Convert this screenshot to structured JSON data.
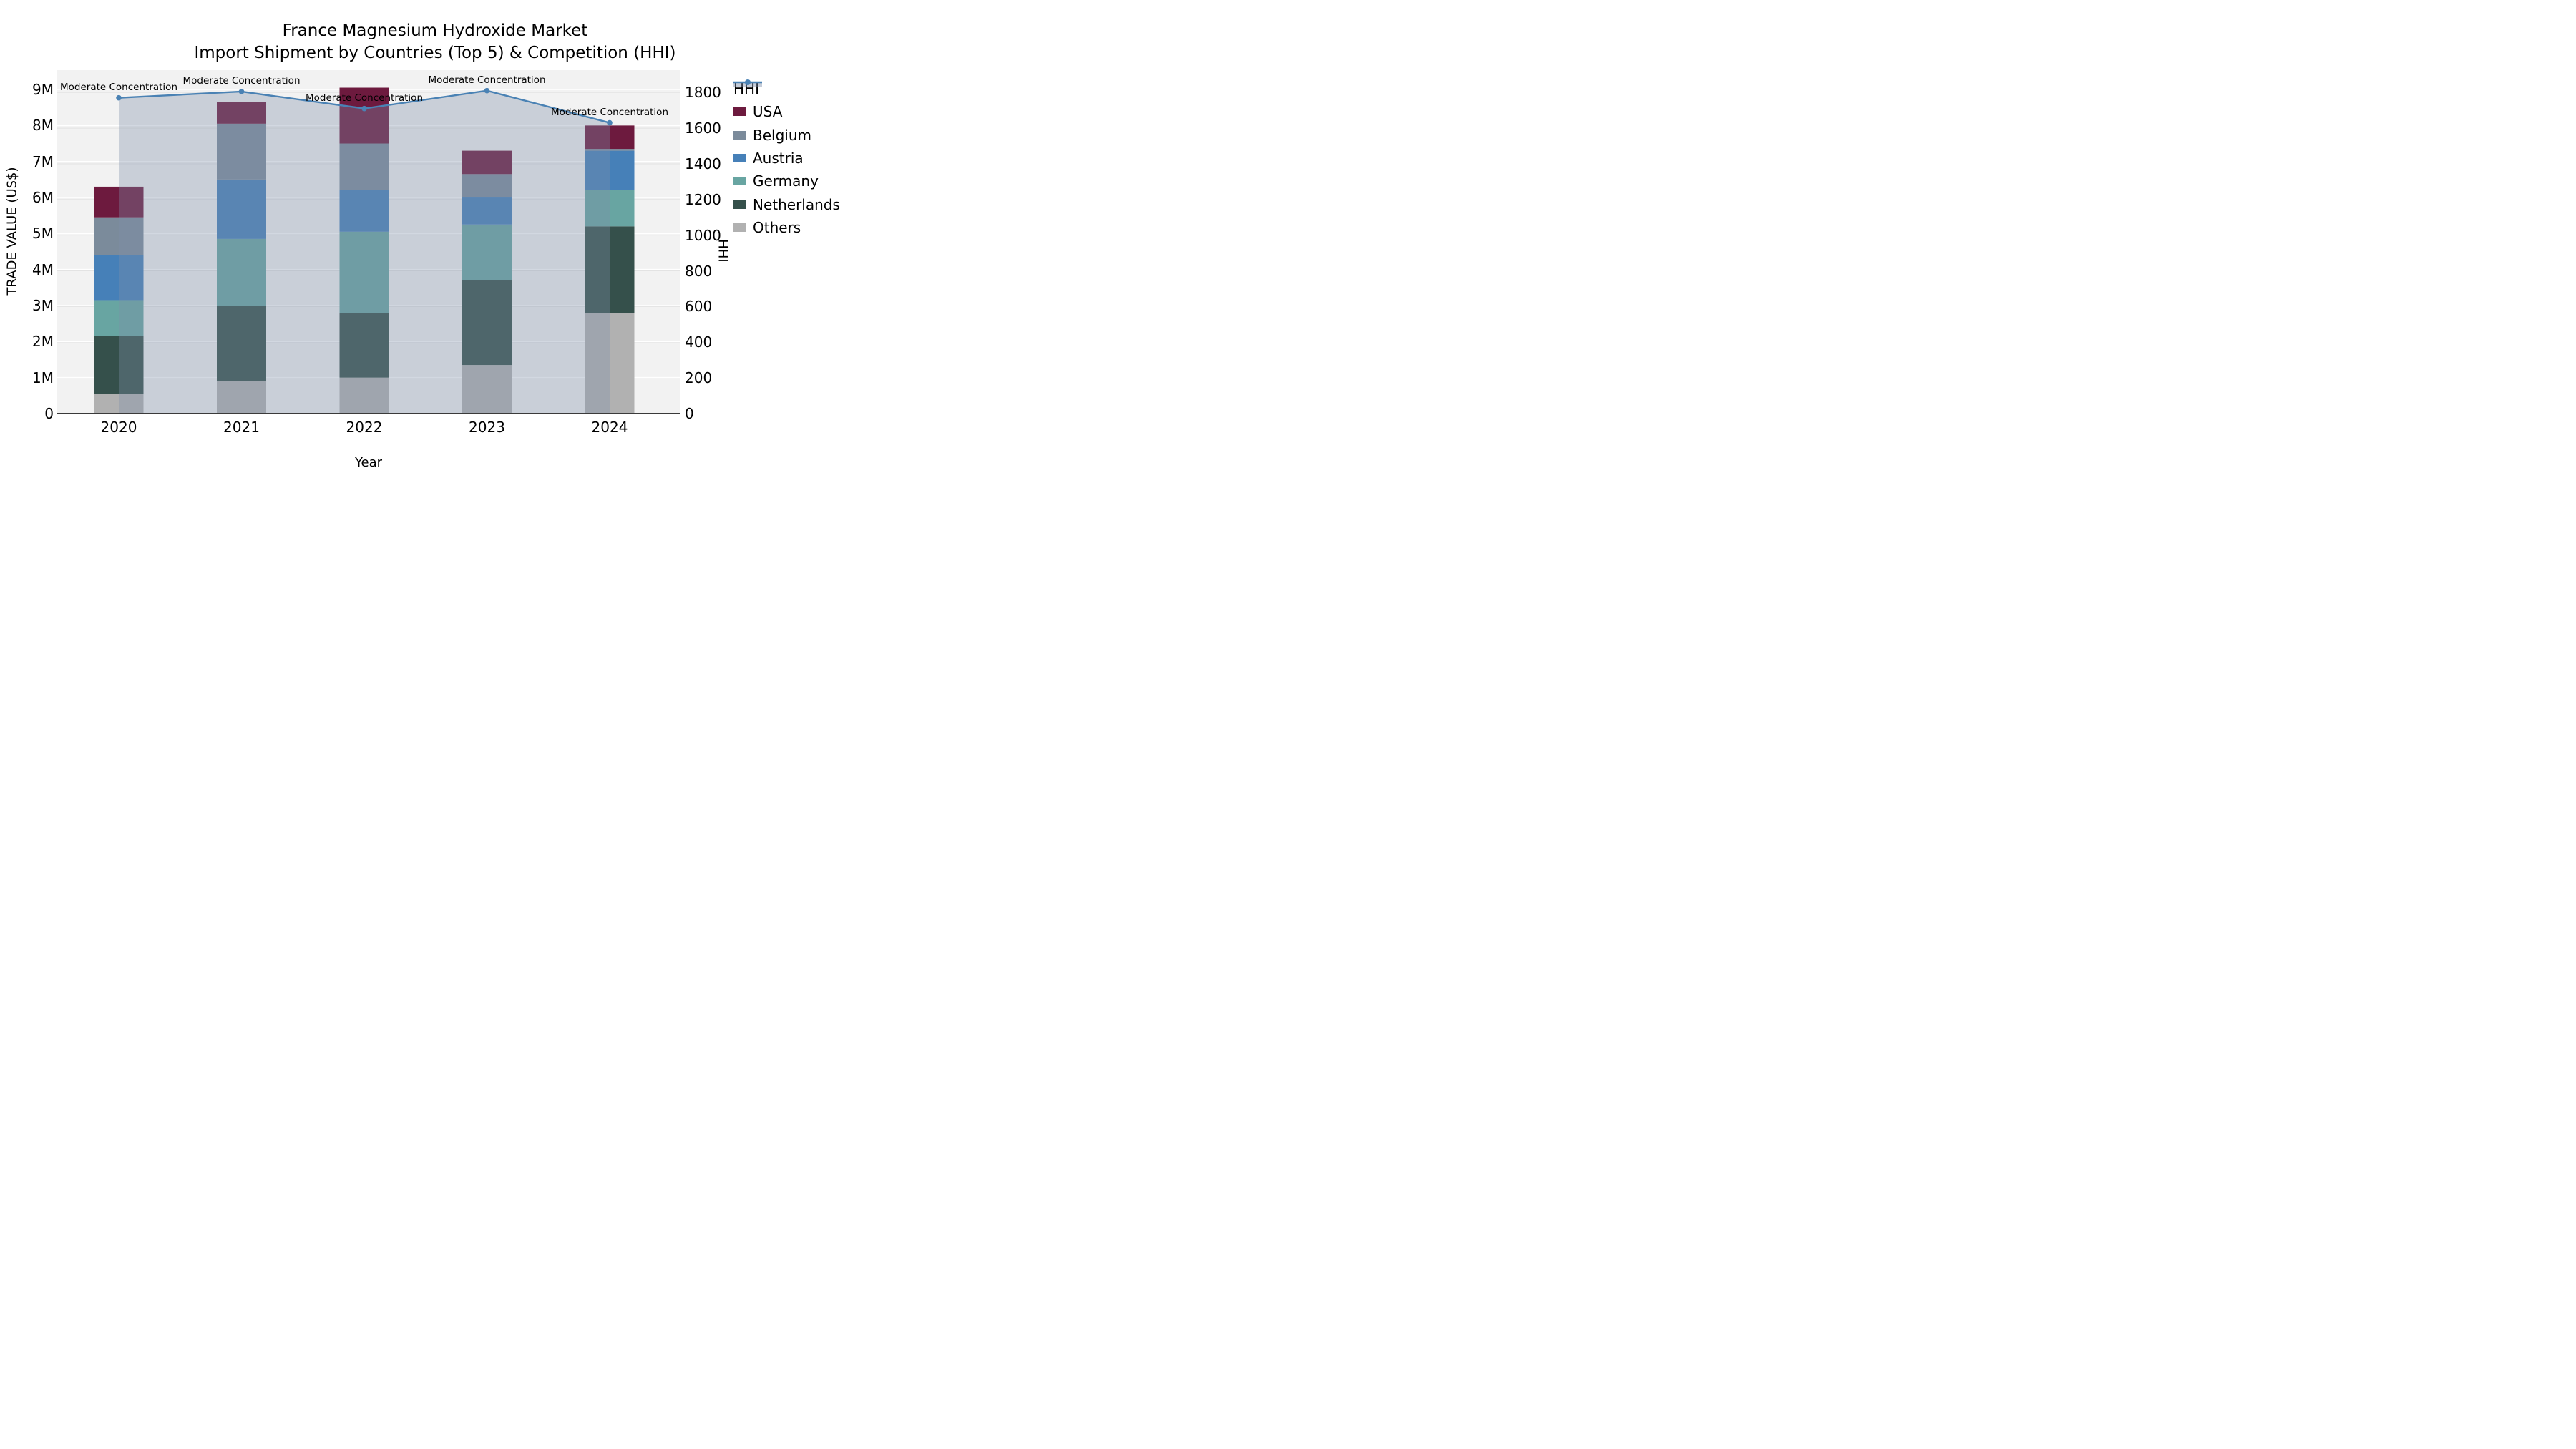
{
  "title": {
    "line1": "France Magnesium Hydroxide Market",
    "line2": "Import Shipment by Countries (Top 5) & Competition (HHI)"
  },
  "axes": {
    "x_title": "Year",
    "y_left_title": "TRADE VALUE (US$)",
    "y_right_title": "HHI",
    "x_ticks": [
      "2020",
      "2021",
      "2022",
      "2023",
      "2024"
    ],
    "y_left_ticks": [
      "0",
      "1M",
      "2M",
      "3M",
      "4M",
      "5M",
      "6M",
      "7M",
      "8M",
      "9M"
    ],
    "y_right_ticks": [
      "0",
      "200",
      "400",
      "600",
      "800",
      "1000",
      "1200",
      "1400",
      "1600",
      "1800"
    ]
  },
  "colors": {
    "plot_bg": "#f2f2f2",
    "grid_major": "#ffffff",
    "grid_minor": "#e3e3e3",
    "baseline": "#3a3a3a",
    "hhi_line": "#4a82b4",
    "hhi_area_fill": "rgba(126,142,168,0.35)"
  },
  "legend": [
    {
      "label": "HHI",
      "type": "line",
      "color": "#4a82b4"
    },
    {
      "label": "USA",
      "type": "box",
      "color": "#6d1a3e"
    },
    {
      "label": "Belgium",
      "type": "box",
      "color": "#7b8b9b"
    },
    {
      "label": "Austria",
      "type": "box",
      "color": "#4680b8"
    },
    {
      "label": "Germany",
      "type": "box",
      "color": "#68a5a2"
    },
    {
      "label": "Netherlands",
      "type": "box",
      "color": "#35504b"
    },
    {
      "label": "Others",
      "type": "box",
      "color": "#b1b1b1"
    }
  ],
  "chart_data": [
    {
      "type": "bar",
      "stacked": true,
      "title": "France Magnesium Hydroxide Market — Import Shipment by Countries (Top 5)",
      "xlabel": "Year",
      "ylabel": "TRADE VALUE (US$)",
      "unit": "million US$",
      "ylim": [
        0,
        9.54
      ],
      "grid": true,
      "categories": [
        "2020",
        "2021",
        "2022",
        "2023",
        "2024"
      ],
      "series": [
        {
          "name": "Others",
          "color": "#b1b1b1",
          "values": [
            0.55,
            0.9,
            1.0,
            1.35,
            2.8
          ]
        },
        {
          "name": "Netherlands",
          "color": "#35504b",
          "values": [
            1.6,
            2.1,
            1.8,
            2.35,
            2.4
          ]
        },
        {
          "name": "Germany",
          "color": "#68a5a2",
          "values": [
            1.0,
            1.85,
            2.25,
            1.55,
            1.0
          ]
        },
        {
          "name": "Austria",
          "color": "#4680b8",
          "values": [
            1.25,
            1.65,
            1.15,
            0.75,
            1.1
          ]
        },
        {
          "name": "Belgium",
          "color": "#7b8b9b",
          "values": [
            1.05,
            1.55,
            1.3,
            0.65,
            0.05
          ]
        },
        {
          "name": "USA",
          "color": "#6d1a3e",
          "values": [
            0.85,
            0.6,
            1.55,
            0.65,
            0.65
          ]
        }
      ],
      "totals": [
        6.3,
        8.65,
        9.05,
        7.3,
        8.0
      ]
    },
    {
      "type": "line",
      "name": "HHI",
      "axis": "right",
      "ylabel": "HHI",
      "ylim": [
        0,
        1925
      ],
      "x": [
        "2020",
        "2021",
        "2022",
        "2023",
        "2024"
      ],
      "values": [
        1770,
        1805,
        1710,
        1810,
        1630
      ],
      "color": "#4a82b4",
      "marker": "circle",
      "area_fill": "rgba(126,142,168,0.35)",
      "annotations": [
        "Moderate Concentration",
        "Moderate Concentration",
        "Moderate Concentration",
        "Moderate Concentration",
        "Moderate Concentration"
      ]
    }
  ]
}
